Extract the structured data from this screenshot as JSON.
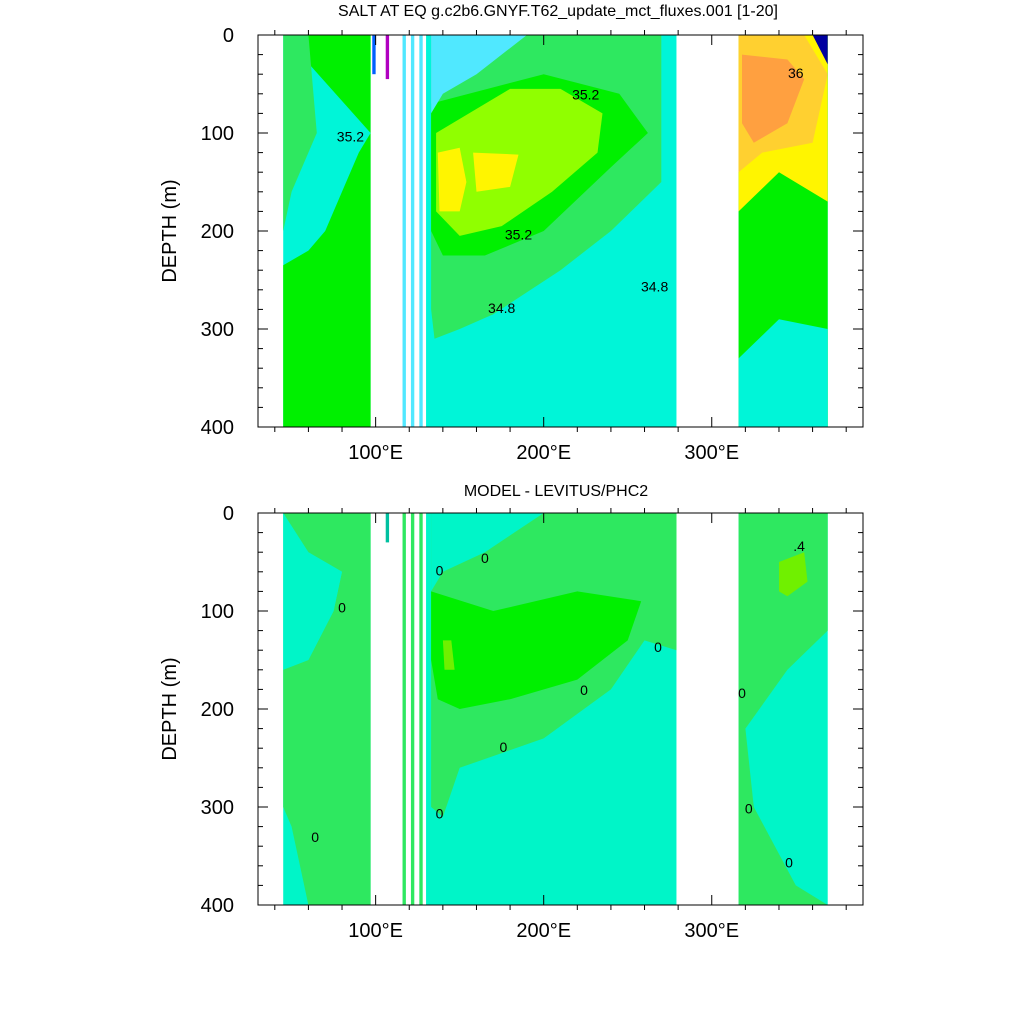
{
  "chart_data": [
    {
      "type": "heatmap",
      "title": "SALT AT EQ g.c2b6.GNYF.T62_update_mct_fluxes.001 [1-20]",
      "ylabel": "DEPTH (m)",
      "xlabel": "",
      "xlim": [
        30,
        390
      ],
      "ylim": [
        400,
        0
      ],
      "x_ticks": [
        100,
        200,
        300
      ],
      "x_tick_labels": [
        "100°E",
        "200°E",
        "300°E"
      ],
      "y_ticks": [
        0,
        100,
        200,
        300,
        400
      ],
      "y_tick_labels": [
        "0",
        "100",
        "200",
        "300",
        "400"
      ],
      "contour_labels": [
        {
          "text": "35.2",
          "x": 85,
          "y": 105
        },
        {
          "text": "35.2",
          "x": 225,
          "y": 62
        },
        {
          "text": "36",
          "x": 350,
          "y": 40
        },
        {
          "text": "35.2",
          "x": 185,
          "y": 205
        },
        {
          "text": "34.8",
          "x": 175,
          "y": 280
        },
        {
          "text": "34.8",
          "x": 266,
          "y": 258
        }
      ],
      "colors": {
        "fresh": "#00f5d8",
        "low": "#00ffa0",
        "mid_low": "#2ee860",
        "mid": "#00f000",
        "mid_high": "#90ff00",
        "high": "#fff500",
        "higher": "#ffd030",
        "highest": "#ffa040",
        "very_fresh": "#50e8ff",
        "magenta": "#b000c0",
        "deep_blue": "#0000a0"
      }
    },
    {
      "type": "heatmap",
      "title": "MODEL - LEVITUS/PHC2",
      "ylabel": "DEPTH (m)",
      "xlabel": "",
      "xlim": [
        30,
        390
      ],
      "ylim": [
        400,
        0
      ],
      "x_ticks": [
        100,
        200,
        300
      ],
      "x_tick_labels": [
        "100°E",
        "200°E",
        "300°E"
      ],
      "y_ticks": [
        0,
        100,
        200,
        300,
        400
      ],
      "y_tick_labels": [
        "0",
        "100",
        "200",
        "300",
        "400"
      ],
      "contour_labels": [
        {
          "text": "0",
          "x": 80,
          "y": 98
        },
        {
          "text": "0",
          "x": 138,
          "y": 60
        },
        {
          "text": "0",
          "x": 165,
          "y": 47
        },
        {
          "text": "0",
          "x": 268,
          "y": 138
        },
        {
          "text": "0",
          "x": 224,
          "y": 182
        },
        {
          "text": "0",
          "x": 176,
          "y": 240
        },
        {
          "text": "0",
          "x": 138,
          "y": 308
        },
        {
          "text": "0",
          "x": 64,
          "y": 332
        },
        {
          "text": "0",
          "x": 318,
          "y": 185
        },
        {
          "text": "0",
          "x": 322,
          "y": 303
        },
        {
          "text": "0",
          "x": 346,
          "y": 358
        },
        {
          "text": ".4",
          "x": 352,
          "y": 35
        }
      ],
      "colors": {
        "neg": "#00f5c8",
        "zero": "#2ee860",
        "pos": "#00f000",
        "pos2": "#70f000",
        "neg2": "#60e8ff"
      }
    }
  ]
}
